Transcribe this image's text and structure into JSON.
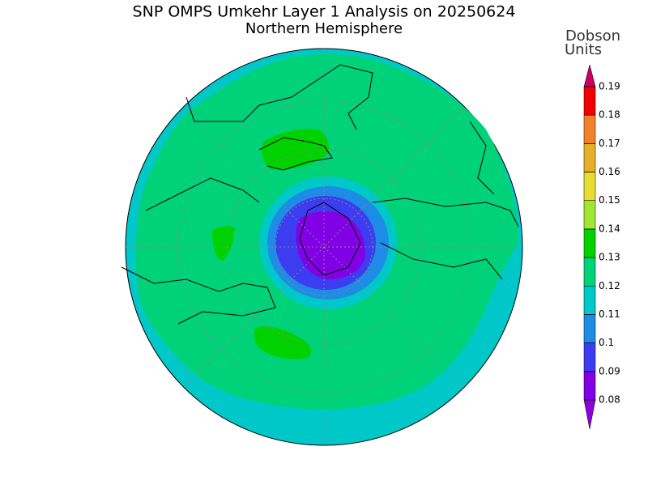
{
  "header": {
    "title": "SNP OMPS Umkehr Layer 1 Analysis on 20250624",
    "subtitle": "Northern Hemisphere"
  },
  "colorbar": {
    "label_lines": [
      "Dobson",
      "Units"
    ],
    "ticks": [
      0.08,
      0.09,
      0.1,
      0.11,
      0.12,
      0.13,
      0.14,
      0.15,
      0.16,
      0.17,
      0.18,
      0.19
    ],
    "colors": [
      "#8c00dc",
      "#8200e6",
      "#3c3cf0",
      "#1e8ce6",
      "#00c8c8",
      "#00d27a",
      "#00d200",
      "#a0e632",
      "#e6dc32",
      "#e6af2d",
      "#f08228",
      "#f00000",
      "#c80064"
    ]
  }
}
